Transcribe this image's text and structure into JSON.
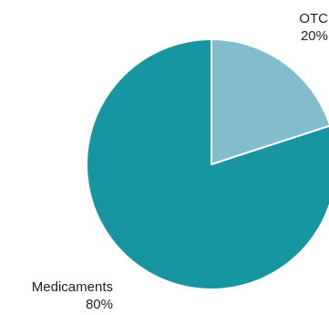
{
  "chart_data": {
    "type": "pie",
    "title": "",
    "slices": [
      {
        "label": "OTC",
        "value": 20,
        "value_label": "20%",
        "color": "#83bccb"
      },
      {
        "label": "Medicaments",
        "value": 80,
        "value_label": "80%",
        "color": "#1796a2"
      }
    ],
    "start_angle": "12 o'clock",
    "direction": "clockwise",
    "legend": "none",
    "label_placement": "outside"
  }
}
